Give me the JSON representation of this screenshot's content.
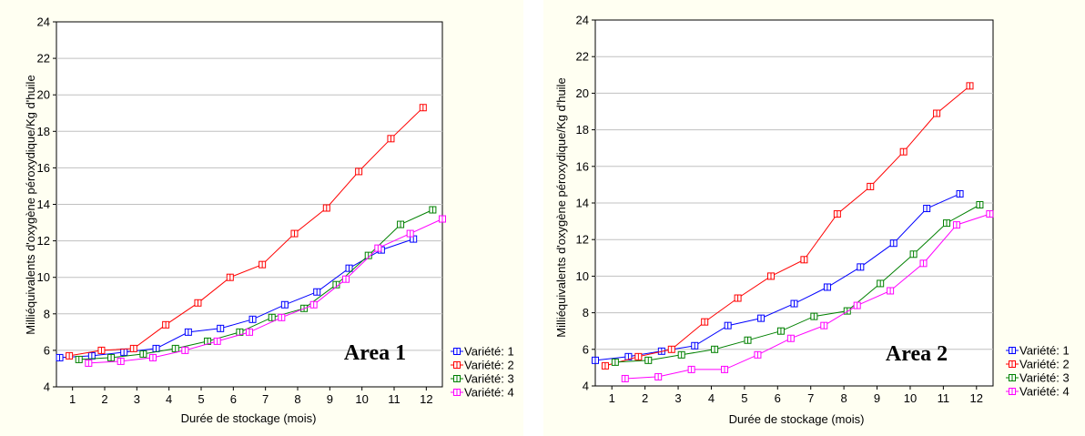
{
  "chart_data": [
    {
      "type": "line",
      "annotation": "Area 1",
      "xlabel": "Durée de stockage (mois)",
      "ylabel": "Milliéquivalents  d'oxygène  péroxydique/Kg d'huile",
      "xlim": [
        0.5,
        12.5
      ],
      "ylim": [
        4,
        24
      ],
      "xticks": [
        1,
        2,
        3,
        4,
        5,
        6,
        7,
        8,
        9,
        10,
        11,
        12
      ],
      "yticks": [
        4,
        6,
        8,
        10,
        12,
        14,
        16,
        18,
        20,
        22,
        24
      ],
      "grid": true,
      "legend_position": "bottom-right",
      "series": [
        {
          "name": "Variété: 1",
          "color": "#0000ff",
          "x": [
            0.6,
            1.6,
            2.6,
            3.6,
            4.6,
            5.6,
            6.6,
            7.6,
            8.6,
            9.6,
            10.6,
            11.6
          ],
          "y": [
            5.6,
            5.7,
            5.9,
            6.1,
            7.0,
            7.2,
            7.7,
            8.5,
            9.2,
            10.5,
            11.5,
            12.1
          ]
        },
        {
          "name": "Variété: 2",
          "color": "#ff0000",
          "x": [
            0.9,
            1.9,
            2.9,
            3.9,
            4.9,
            5.9,
            6.9,
            7.9,
            8.9,
            9.9,
            10.9,
            11.9
          ],
          "y": [
            5.7,
            6.0,
            6.1,
            7.4,
            8.6,
            10.0,
            10.7,
            12.4,
            13.8,
            15.8,
            17.6,
            19.3
          ]
        },
        {
          "name": "Variété: 3",
          "color": "#008000",
          "x": [
            1.2,
            2.2,
            3.2,
            4.2,
            5.2,
            6.2,
            7.2,
            8.2,
            9.2,
            10.2,
            11.2,
            12.2
          ],
          "y": [
            5.5,
            5.6,
            5.8,
            6.1,
            6.5,
            7.0,
            7.8,
            8.3,
            9.6,
            11.2,
            12.9,
            13.7
          ]
        },
        {
          "name": "Variété: 4",
          "color": "#ff00ff",
          "x": [
            1.5,
            2.5,
            3.5,
            4.5,
            5.5,
            6.5,
            7.5,
            8.5,
            9.5,
            10.5,
            11.5,
            12.5
          ],
          "y": [
            5.3,
            5.4,
            5.6,
            6.0,
            6.5,
            7.0,
            7.8,
            8.5,
            9.9,
            11.6,
            12.4,
            13.2
          ]
        }
      ]
    },
    {
      "type": "line",
      "annotation": "Area 2",
      "xlabel": "Durée de stockage (mois)",
      "ylabel": "Milliéquivalents  d'oxygène  péroxydique/Kg d'huile",
      "xlim": [
        0.5,
        12.5
      ],
      "ylim": [
        4,
        24
      ],
      "xticks": [
        1,
        2,
        3,
        4,
        5,
        6,
        7,
        8,
        9,
        10,
        11,
        12
      ],
      "yticks": [
        4,
        6,
        8,
        10,
        12,
        14,
        16,
        18,
        20,
        22,
        24
      ],
      "grid": true,
      "legend_position": "bottom-right",
      "series": [
        {
          "name": "Variété: 1",
          "color": "#0000ff",
          "x": [
            0.5,
            1.5,
            2.5,
            3.5,
            4.5,
            5.5,
            6.5,
            7.5,
            8.5,
            9.5,
            10.5,
            11.5
          ],
          "y": [
            5.4,
            5.6,
            5.9,
            6.2,
            7.3,
            7.7,
            8.5,
            9.4,
            10.5,
            11.8,
            13.7,
            14.5
          ]
        },
        {
          "name": "Variété: 2",
          "color": "#ff0000",
          "x": [
            0.8,
            1.8,
            2.8,
            3.8,
            4.8,
            5.8,
            6.8,
            7.8,
            8.8,
            9.8,
            10.8,
            11.8
          ],
          "y": [
            5.1,
            5.6,
            6.0,
            7.5,
            8.8,
            10.0,
            10.9,
            13.4,
            14.9,
            16.8,
            18.9,
            20.4
          ]
        },
        {
          "name": "Variété: 3",
          "color": "#008000",
          "x": [
            1.1,
            2.1,
            3.1,
            4.1,
            5.1,
            6.1,
            7.1,
            8.1,
            9.1,
            10.1,
            11.1,
            12.1
          ],
          "y": [
            5.3,
            5.4,
            5.7,
            6.0,
            6.5,
            7.0,
            7.8,
            8.1,
            9.6,
            11.2,
            12.9,
            13.9
          ]
        },
        {
          "name": "Variété: 4",
          "color": "#ff00ff",
          "x": [
            1.4,
            2.4,
            3.4,
            4.4,
            5.4,
            6.4,
            7.4,
            8.4,
            9.4,
            10.4,
            11.4,
            12.4
          ],
          "y": [
            4.4,
            4.5,
            4.9,
            4.9,
            5.7,
            6.6,
            7.3,
            8.4,
            9.2,
            10.7,
            12.8,
            13.4
          ]
        }
      ]
    }
  ]
}
